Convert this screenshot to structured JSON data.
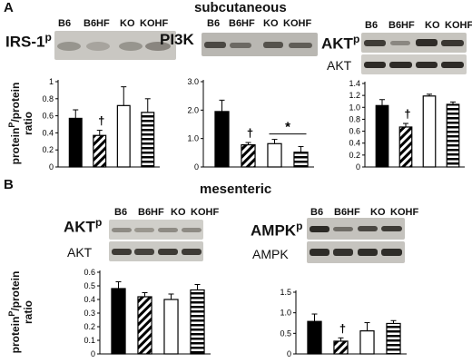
{
  "panels": {
    "A": {
      "letter": "A",
      "title": "subcutaneous",
      "lanes": [
        "B6",
        "B6HF",
        "KO",
        "KOHF"
      ],
      "blots": {
        "irs1": "IRS-1",
        "pi3k": "PI3K",
        "akt_p": "AKT",
        "akt": "AKT",
        "p_sup": "p"
      }
    },
    "B": {
      "letter": "B",
      "title": "mesenteric",
      "lanes": [
        "B6",
        "B6HF",
        "KO",
        "KOHF"
      ],
      "blots": {
        "akt_p": "AKT",
        "akt": "AKT",
        "ampk_p": "AMPK",
        "ampk": "AMPK",
        "p_sup": "p"
      }
    }
  },
  "ylabel": {
    "line1": "protein",
    "sup": "P",
    "line2": "/protein",
    "line3": "ratio"
  },
  "chart_data": [
    {
      "id": "A-irs1",
      "type": "bar",
      "categories": [
        "B6",
        "B6HF",
        "KO",
        "KOHF"
      ],
      "values": [
        0.57,
        0.37,
        0.72,
        0.64
      ],
      "errors": [
        0.1,
        0.06,
        0.22,
        0.16
      ],
      "ylim": [
        0,
        1.0
      ],
      "yticks": [
        0,
        0.2,
        0.4,
        0.6,
        0.8,
        1
      ],
      "ytick_labels": [
        "0",
        "0.2",
        "0.4",
        "0.6",
        "0.8",
        "1"
      ],
      "annotations": [
        {
          "text": "†",
          "bar": 1
        }
      ]
    },
    {
      "id": "A-pi3k",
      "type": "bar",
      "categories": [
        "B6",
        "B6HF",
        "KO",
        "KOHF"
      ],
      "values": [
        1.95,
        0.78,
        0.82,
        0.52
      ],
      "errors": [
        0.4,
        0.08,
        0.15,
        0.2
      ],
      "ylim": [
        0,
        3.0
      ],
      "yticks": [
        0,
        1,
        2,
        3
      ],
      "ytick_labels": [
        "0",
        "1.0",
        "2.0",
        "3.0"
      ],
      "annotations": [
        {
          "text": "†",
          "bar": 1
        },
        {
          "text": "*",
          "bracket": [
            2,
            3
          ]
        }
      ]
    },
    {
      "id": "A-akt",
      "type": "bar",
      "categories": [
        "B6",
        "B6HF",
        "KO",
        "KOHF"
      ],
      "values": [
        1.03,
        0.67,
        1.19,
        1.05
      ],
      "errors": [
        0.1,
        0.06,
        0.03,
        0.04
      ],
      "ylim": [
        0,
        1.4
      ],
      "yticks": [
        0,
        0.2,
        0.4,
        0.6,
        0.8,
        1.0,
        1.2,
        1.4
      ],
      "ytick_labels": [
        "0",
        "0.2",
        "0.4",
        "0.6",
        "0.8",
        "1.0",
        "1.2",
        "1.4"
      ],
      "annotations": [
        {
          "text": "†",
          "bar": 1
        }
      ]
    },
    {
      "id": "B-akt",
      "type": "bar",
      "categories": [
        "B6",
        "B6HF",
        "KO",
        "KOHF"
      ],
      "values": [
        0.48,
        0.42,
        0.4,
        0.47
      ],
      "errors": [
        0.05,
        0.03,
        0.04,
        0.04
      ],
      "ylim": [
        0,
        0.6
      ],
      "yticks": [
        0,
        0.1,
        0.2,
        0.3,
        0.4,
        0.5,
        0.6
      ],
      "ytick_labels": [
        "0",
        "0.1",
        "0.2",
        "0.3",
        "0.4",
        "0.5",
        "0.6"
      ],
      "annotations": []
    },
    {
      "id": "B-ampk",
      "type": "bar",
      "categories": [
        "B6",
        "B6HF",
        "KO",
        "KOHF"
      ],
      "values": [
        0.79,
        0.31,
        0.56,
        0.74
      ],
      "errors": [
        0.18,
        0.08,
        0.2,
        0.07
      ],
      "ylim": [
        0,
        1.5
      ],
      "yticks": [
        0,
        0.5,
        1.0,
        1.5
      ],
      "ytick_labels": [
        "0",
        "0.5",
        "1.0",
        "1.5"
      ],
      "annotations": [
        {
          "text": "†",
          "bar": 1
        }
      ]
    }
  ]
}
